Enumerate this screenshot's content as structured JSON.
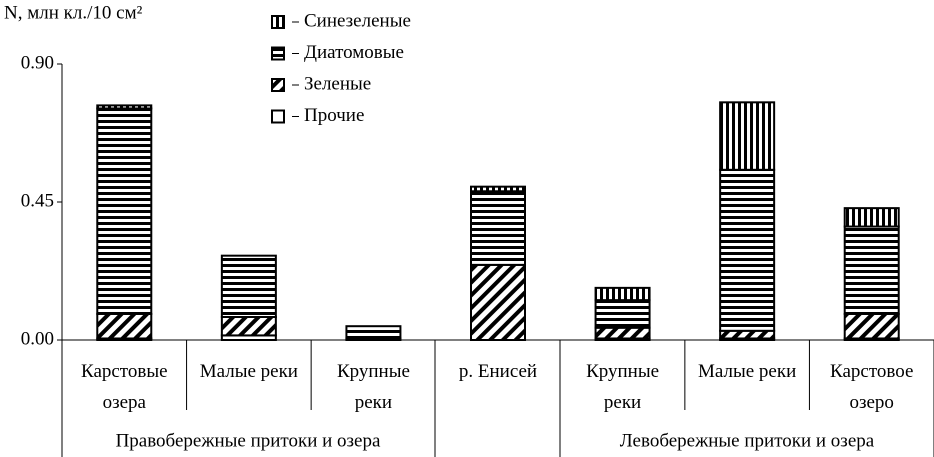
{
  "chart_data": {
    "type": "stacked-bar",
    "y_axis_label": "N, млн кл./10 см²",
    "categories": [
      "Карстовые\nозера",
      "Малые реки",
      "Крупные\nреки",
      "р. Енисей",
      "Крупные\nреки",
      "Малые реки",
      "Карстовое\nозеро"
    ],
    "groups": [
      "Правобережные притоки и озера",
      "Левобережные притоки и озера"
    ],
    "series": [
      {
        "name": "Прочие",
        "color": "#000000",
        "pattern": "none",
        "values": [
          0.005,
          0.015,
          0.005,
          0,
          0.005,
          0.005,
          0.005
        ]
      },
      {
        "name": "Зеленые",
        "color": "#000000",
        "pattern": "diagonal",
        "values": [
          0.08,
          0.06,
          0,
          0.245,
          0.035,
          0.025,
          0.08
        ]
      },
      {
        "name": "Диатомовые",
        "color": "#000000",
        "pattern": "horizontal",
        "values": [
          0.67,
          0.2,
          0.04,
          0.24,
          0.09,
          0.525,
          0.285
        ]
      },
      {
        "name": "Синезеленые",
        "color": "#000000",
        "pattern": "vertical",
        "values": [
          0.01,
          0,
          0,
          0.015,
          0.04,
          0.22,
          0.06
        ]
      }
    ],
    "ylim": [
      0,
      0.9
    ],
    "yticks": [
      {
        "value": 0,
        "label": "0.00"
      },
      {
        "value": 0.45,
        "label": "0.45"
      },
      {
        "value": 0.9,
        "label": "0.90"
      }
    ],
    "grid": false
  }
}
